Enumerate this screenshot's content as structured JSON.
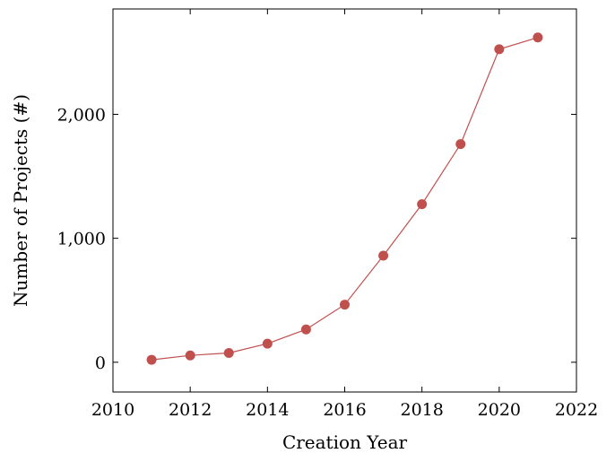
{
  "chart_data": {
    "type": "line",
    "xlabel": "Creation Year",
    "ylabel": "Number of Projects (#)",
    "xlim": [
      2010,
      2022
    ],
    "ylim": [
      -240,
      2850
    ],
    "xticks": [
      2010,
      2012,
      2014,
      2016,
      2018,
      2020,
      2022
    ],
    "xtick_labels": [
      "2010",
      "2012",
      "2014",
      "2016",
      "2018",
      "2020",
      "2022"
    ],
    "yticks": [
      0,
      1000,
      2000
    ],
    "ytick_labels": [
      "0",
      "1,000",
      "2,000"
    ],
    "grid": false,
    "series": [
      {
        "x": [
          2011,
          2012,
          2013,
          2014,
          2015,
          2016,
          2017,
          2018,
          2019,
          2020,
          2021
        ],
        "y": [
          20,
          55,
          75,
          150,
          265,
          465,
          860,
          1275,
          1760,
          2525,
          2620
        ],
        "color": "#c0504d"
      }
    ]
  }
}
